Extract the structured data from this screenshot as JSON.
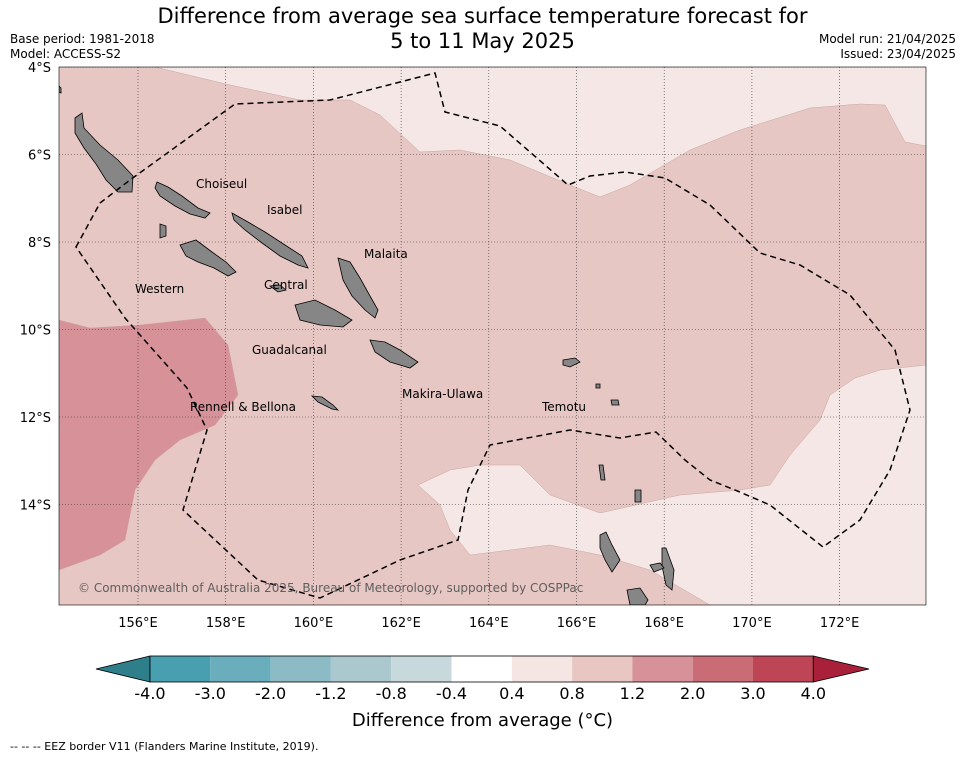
{
  "title_line1": "Difference from average sea surface temperature forecast for",
  "title_line2": "5 to 11 May 2025",
  "meta_left": {
    "base_period": "Base period: 1981-2018",
    "model": "Model: ACCESS-S2"
  },
  "meta_right": {
    "model_run": "Model run: 21/04/2025",
    "issued": "Issued: 23/04/2025"
  },
  "map": {
    "lat_ticks": [
      "4°S",
      "6°S",
      "8°S",
      "10°S",
      "12°S",
      "14°S"
    ],
    "lon_ticks": [
      "156°E",
      "158°E",
      "160°E",
      "162°E",
      "164°E",
      "166°E",
      "168°E",
      "170°E",
      "172°E"
    ],
    "regions": [
      "Choiseul",
      "Isabel",
      "Malaita",
      "Western",
      "Central",
      "Guadalcanal",
      "Rennell & Bellona",
      "Makira-Ulawa",
      "Temotu"
    ],
    "copyright": "© Commonwealth of Australia 2025, Bureau of Meteorology, supported by COSPPac",
    "colors": {
      "land": "#878686",
      "band_0_4_to_0_8": "#f4e7e5",
      "band_0_8_to_1_2": "#e7c7c3",
      "band_1_2_to_2_0": "#d79198"
    }
  },
  "colorbar": {
    "ticks": [
      "-4.0",
      "-3.0",
      "-2.0",
      "-1.2",
      "-0.8",
      "-0.4",
      "0.4",
      "0.8",
      "1.2",
      "2.0",
      "3.0",
      "4.0"
    ],
    "colors": [
      "#2f7f8b",
      "#489fb0",
      "#6aaebd",
      "#8cbbc6",
      "#aac8ce",
      "#c8d9dd",
      "#ffffff",
      "#f5e6e4",
      "#e8c6c2",
      "#d79198",
      "#c96c76",
      "#bd4556",
      "#a8203a"
    ],
    "label": "Difference from average (°C)"
  },
  "footnote": "--  --  -- EEZ border V11 (Flanders Marine Institute, 2019)."
}
